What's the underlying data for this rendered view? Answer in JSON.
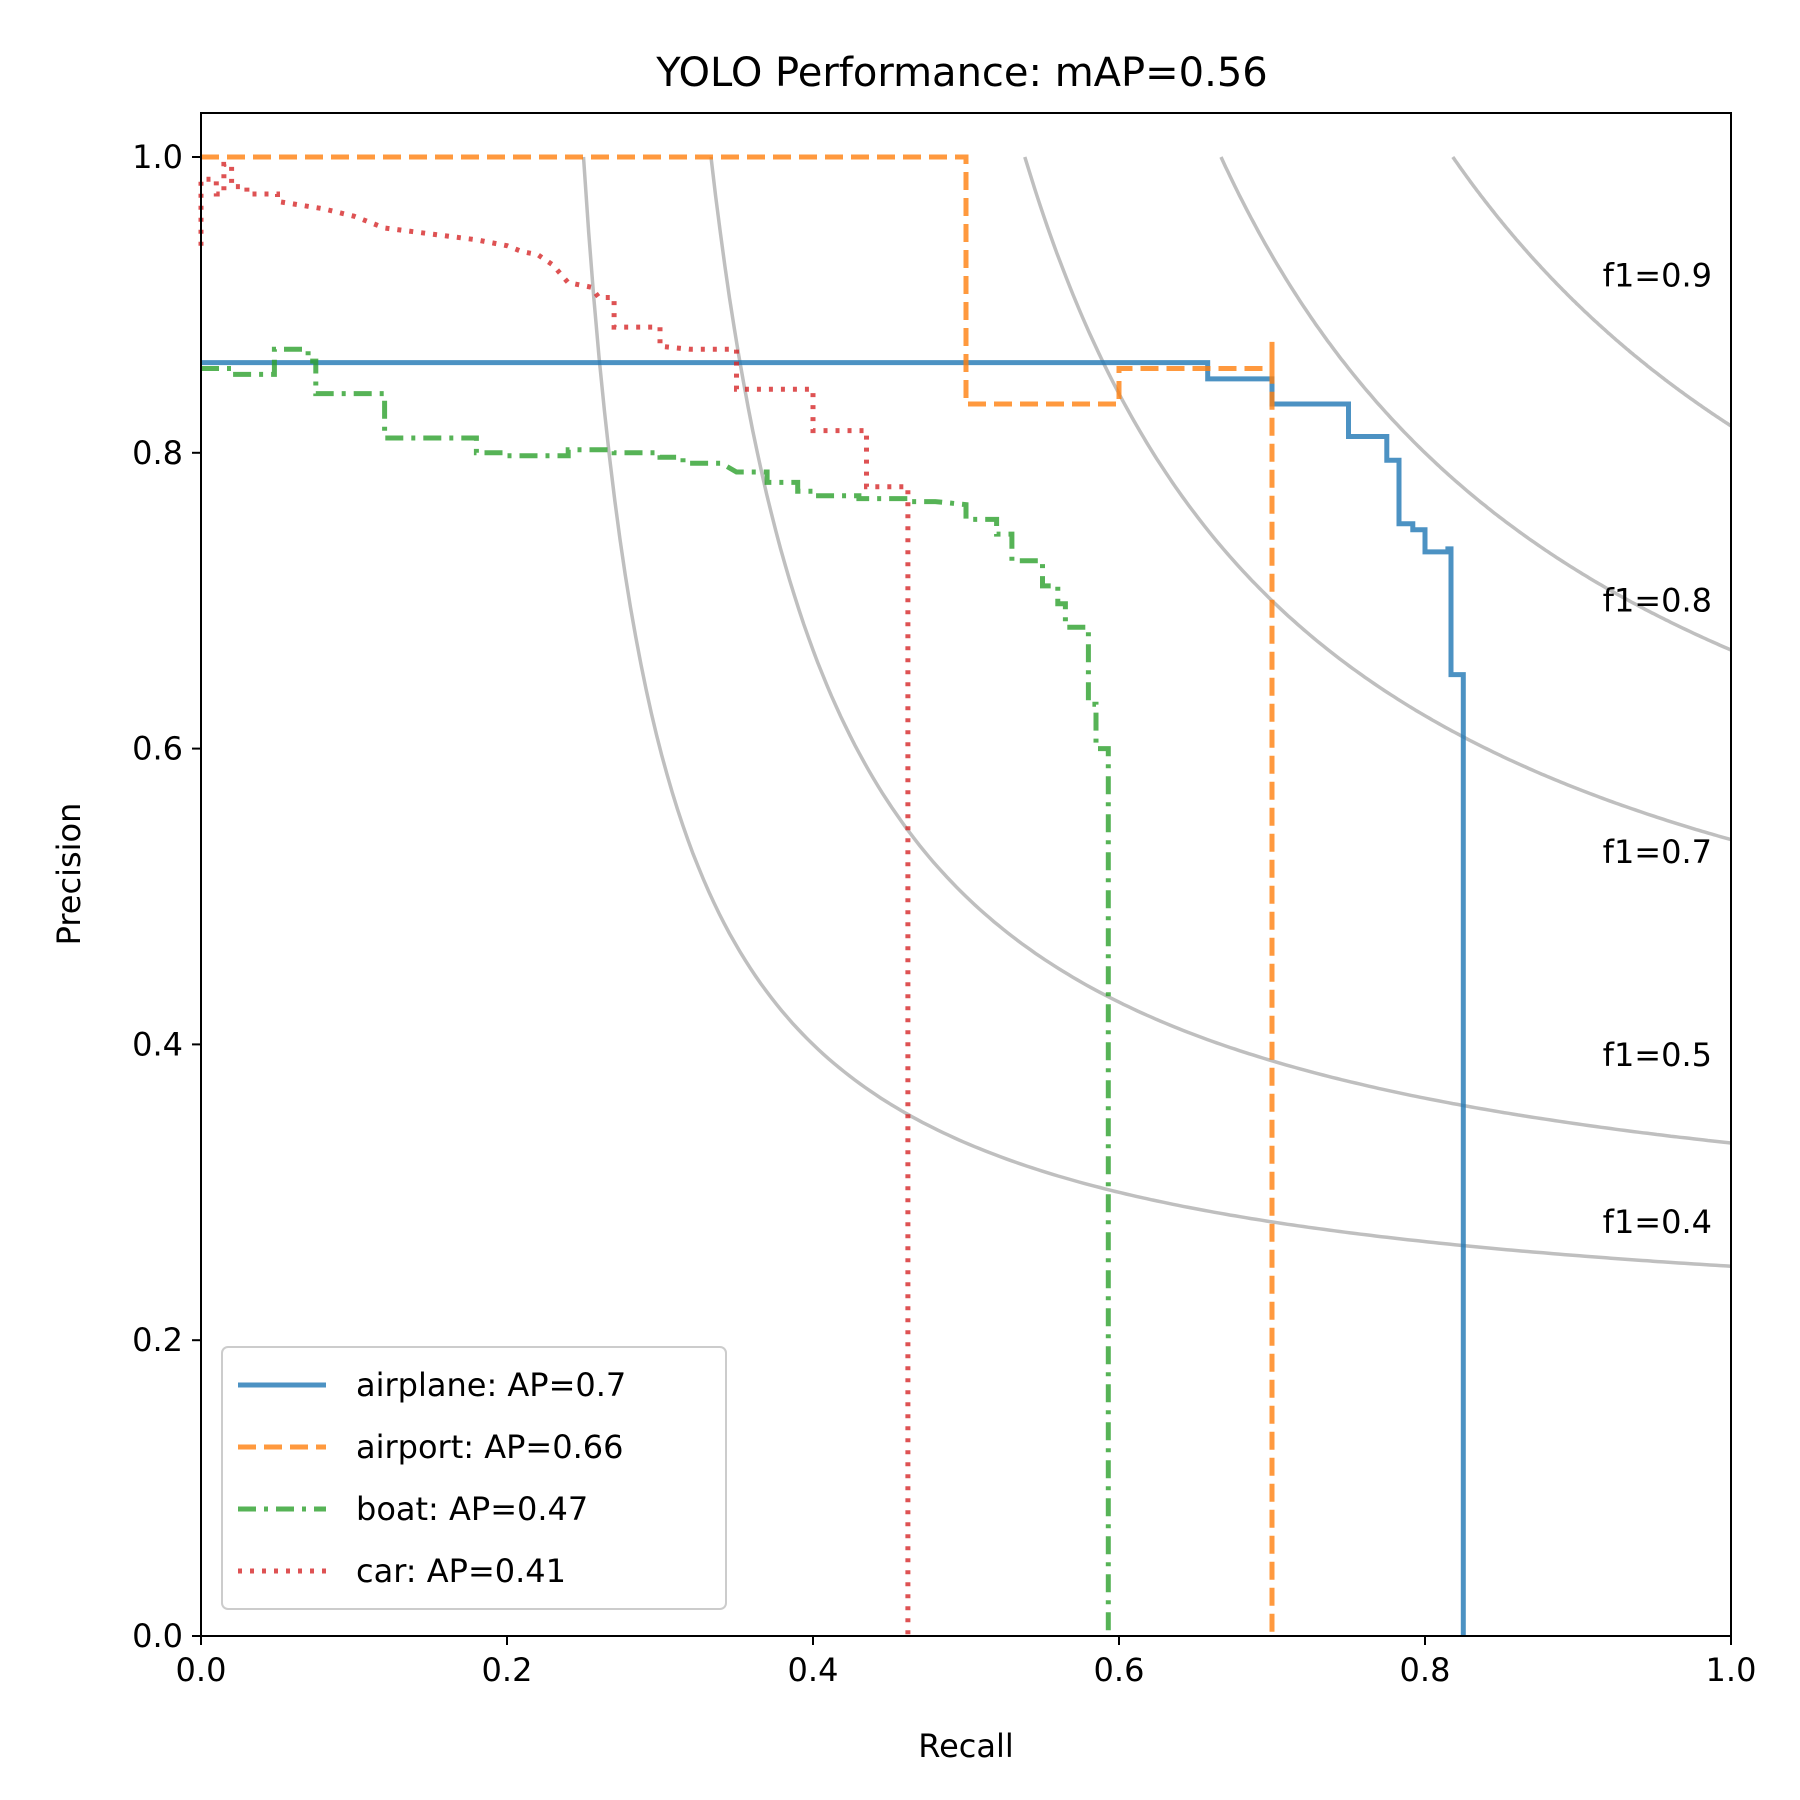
{
  "chart_data": {
    "type": "line",
    "title": "YOLO Performance:  mAP=0.56",
    "xlabel": "Recall",
    "ylabel": "Precision",
    "xlim": [
      0.0,
      1.0
    ],
    "ylim": [
      0.0,
      1.03
    ],
    "xticks": [
      0.0,
      0.2,
      0.4,
      0.6,
      0.8,
      1.0
    ],
    "yticks": [
      0.0,
      0.2,
      0.4,
      0.6,
      0.8,
      1.0
    ],
    "xtick_labels": [
      "0.0",
      "0.2",
      "0.4",
      "0.6",
      "0.8",
      "1.0"
    ],
    "ytick_labels": [
      "0.0",
      "0.2",
      "0.4",
      "0.6",
      "0.8",
      "1.0"
    ],
    "legend_position": "lower-left",
    "iso_f1": [
      {
        "f1": 0.4,
        "label": "f1=0.4",
        "label_y": 0.28
      },
      {
        "f1": 0.5,
        "label": "f1=0.5",
        "label_y": 0.393
      },
      {
        "f1": 0.7,
        "label": "f1=0.7",
        "label_y": 0.53
      },
      {
        "f1": 0.8,
        "label": "f1=0.8",
        "label_y": 0.7
      },
      {
        "f1": 0.9,
        "label": "f1=0.9",
        "label_y": 0.92
      }
    ],
    "series": [
      {
        "name": "airplane",
        "label": "airplane: AP=0.7",
        "color": "#1f77b4",
        "dash": "solid",
        "points": [
          [
            0.0,
            0.861
          ],
          [
            0.658,
            0.861
          ],
          [
            0.658,
            0.85
          ],
          [
            0.7,
            0.85
          ],
          [
            0.7,
            0.833
          ],
          [
            0.75,
            0.833
          ],
          [
            0.75,
            0.811
          ],
          [
            0.775,
            0.811
          ],
          [
            0.775,
            0.795
          ],
          [
            0.783,
            0.795
          ],
          [
            0.783,
            0.752
          ],
          [
            0.792,
            0.752
          ],
          [
            0.792,
            0.748
          ],
          [
            0.8,
            0.748
          ],
          [
            0.8,
            0.733
          ],
          [
            0.815,
            0.733
          ],
          [
            0.815,
            0.735
          ],
          [
            0.817,
            0.735
          ],
          [
            0.817,
            0.65
          ],
          [
            0.825,
            0.65
          ],
          [
            0.825,
            0.0
          ]
        ]
      },
      {
        "name": "airport",
        "label": "airport: AP=0.66",
        "color": "#ff7f0e",
        "dash": "dashed",
        "points": [
          [
            0.0,
            1.0
          ],
          [
            0.5,
            1.0
          ],
          [
            0.5,
            0.833
          ],
          [
            0.6,
            0.833
          ],
          [
            0.6,
            0.857
          ],
          [
            0.7,
            0.857
          ],
          [
            0.7,
            0.875
          ],
          [
            0.7,
            0.0
          ]
        ]
      },
      {
        "name": "boat",
        "label": "boat: AP=0.47",
        "color": "#2ca02c",
        "dash": "dashdot",
        "points": [
          [
            0.0,
            0.857
          ],
          [
            0.02,
            0.857
          ],
          [
            0.02,
            0.853
          ],
          [
            0.048,
            0.853
          ],
          [
            0.048,
            0.87
          ],
          [
            0.07,
            0.87
          ],
          [
            0.07,
            0.862
          ],
          [
            0.075,
            0.862
          ],
          [
            0.075,
            0.84
          ],
          [
            0.12,
            0.84
          ],
          [
            0.12,
            0.81
          ],
          [
            0.18,
            0.81
          ],
          [
            0.18,
            0.8
          ],
          [
            0.2,
            0.8
          ],
          [
            0.2,
            0.798
          ],
          [
            0.24,
            0.798
          ],
          [
            0.24,
            0.802
          ],
          [
            0.27,
            0.802
          ],
          [
            0.27,
            0.8
          ],
          [
            0.3,
            0.8
          ],
          [
            0.3,
            0.797
          ],
          [
            0.315,
            0.797
          ],
          [
            0.315,
            0.793
          ],
          [
            0.34,
            0.793
          ],
          [
            0.35,
            0.787
          ],
          [
            0.37,
            0.787
          ],
          [
            0.37,
            0.78
          ],
          [
            0.39,
            0.78
          ],
          [
            0.39,
            0.774
          ],
          [
            0.4,
            0.774
          ],
          [
            0.4,
            0.771
          ],
          [
            0.43,
            0.771
          ],
          [
            0.43,
            0.769
          ],
          [
            0.46,
            0.769
          ],
          [
            0.46,
            0.767
          ],
          [
            0.48,
            0.767
          ],
          [
            0.5,
            0.765
          ],
          [
            0.5,
            0.755
          ],
          [
            0.52,
            0.755
          ],
          [
            0.52,
            0.745
          ],
          [
            0.53,
            0.745
          ],
          [
            0.53,
            0.727
          ],
          [
            0.55,
            0.727
          ],
          [
            0.55,
            0.71
          ],
          [
            0.56,
            0.71
          ],
          [
            0.56,
            0.698
          ],
          [
            0.565,
            0.698
          ],
          [
            0.565,
            0.682
          ],
          [
            0.58,
            0.682
          ],
          [
            0.58,
            0.63
          ],
          [
            0.585,
            0.63
          ],
          [
            0.585,
            0.6
          ],
          [
            0.593,
            0.6
          ],
          [
            0.593,
            0.0
          ]
        ]
      },
      {
        "name": "car",
        "label": "car: AP=0.41",
        "color": "#d62728",
        "dash": "dotted",
        "points": [
          [
            0.0,
            0.94
          ],
          [
            0.0,
            0.985
          ],
          [
            0.01,
            0.985
          ],
          [
            0.01,
            0.975
          ],
          [
            0.015,
            0.975
          ],
          [
            0.015,
            0.995
          ],
          [
            0.02,
            0.995
          ],
          [
            0.02,
            0.98
          ],
          [
            0.03,
            0.98
          ],
          [
            0.03,
            0.975
          ],
          [
            0.05,
            0.975
          ],
          [
            0.05,
            0.97
          ],
          [
            0.08,
            0.965
          ],
          [
            0.1,
            0.96
          ],
          [
            0.12,
            0.952
          ],
          [
            0.15,
            0.948
          ],
          [
            0.18,
            0.944
          ],
          [
            0.2,
            0.94
          ],
          [
            0.21,
            0.936
          ],
          [
            0.22,
            0.934
          ],
          [
            0.23,
            0.927
          ],
          [
            0.24,
            0.915
          ],
          [
            0.255,
            0.912
          ],
          [
            0.26,
            0.905
          ],
          [
            0.27,
            0.905
          ],
          [
            0.27,
            0.885
          ],
          [
            0.3,
            0.885
          ],
          [
            0.3,
            0.872
          ],
          [
            0.32,
            0.87
          ],
          [
            0.35,
            0.87
          ],
          [
            0.35,
            0.843
          ],
          [
            0.4,
            0.843
          ],
          [
            0.4,
            0.815
          ],
          [
            0.435,
            0.815
          ],
          [
            0.435,
            0.777
          ],
          [
            0.462,
            0.777
          ],
          [
            0.462,
            0.0
          ]
        ]
      }
    ]
  }
}
